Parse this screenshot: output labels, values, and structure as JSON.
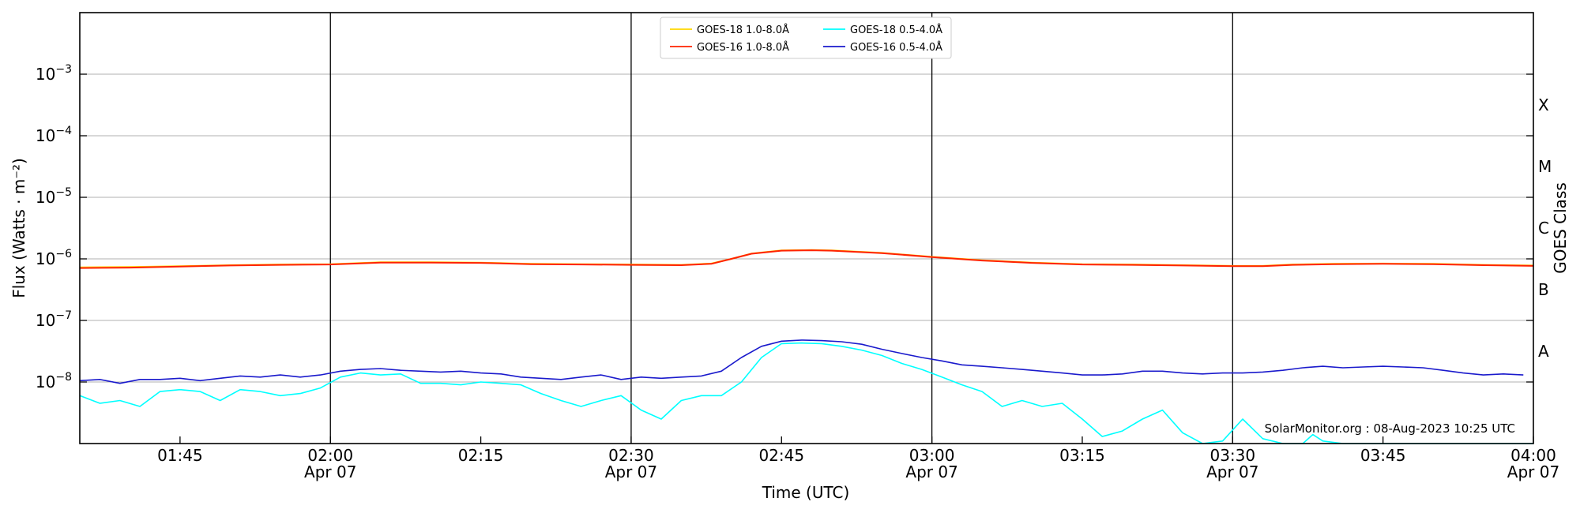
{
  "chart_data": {
    "type": "line",
    "xlabel": "Time (UTC)",
    "ylabel": "Flux (Watts · m⁻²)",
    "ylabel_right": "GOES Class",
    "credit": "SolarMonitor.org : 08-Aug-2023 10:25 UTC",
    "x_range": [
      "01:35",
      "04:00"
    ],
    "ylim": [
      1e-09,
      0.01
    ],
    "yscale": "log",
    "grid": "horizontal at decades",
    "legend_position": "top-center",
    "x_ticks": [
      {
        "time": "01:45",
        "line1": "01:45",
        "line2": ""
      },
      {
        "time": "02:00",
        "line1": "02:00",
        "line2": "Apr 07"
      },
      {
        "time": "02:15",
        "line1": "02:15",
        "line2": ""
      },
      {
        "time": "02:30",
        "line1": "02:30",
        "line2": "Apr 07"
      },
      {
        "time": "02:45",
        "line1": "02:45",
        "line2": ""
      },
      {
        "time": "03:00",
        "line1": "03:00",
        "line2": "Apr 07"
      },
      {
        "time": "03:15",
        "line1": "03:15",
        "line2": ""
      },
      {
        "time": "03:30",
        "line1": "03:30",
        "line2": "Apr 07"
      },
      {
        "time": "03:45",
        "line1": "03:45",
        "line2": ""
      },
      {
        "time": "04:00",
        "line1": "04:00",
        "line2": "Apr 07"
      }
    ],
    "vlines": [
      "02:00",
      "02:30",
      "03:00",
      "03:30"
    ],
    "y_ticks": [
      {
        "exp": -8,
        "base": "10",
        "sup": "−8"
      },
      {
        "exp": -7,
        "base": "10",
        "sup": "−7"
      },
      {
        "exp": -6,
        "base": "10",
        "sup": "−6"
      },
      {
        "exp": -5,
        "base": "10",
        "sup": "−5"
      },
      {
        "exp": -4,
        "base": "10",
        "sup": "−4"
      },
      {
        "exp": -3,
        "base": "10",
        "sup": "−3"
      }
    ],
    "goes_classes": [
      {
        "label": "A",
        "exp": -7.5
      },
      {
        "label": "B",
        "exp": -6.5
      },
      {
        "label": "C",
        "exp": -5.5
      },
      {
        "label": "M",
        "exp": -4.5
      },
      {
        "label": "X",
        "exp": -3.5
      }
    ],
    "legend": [
      {
        "label": "GOES-18 1.0-8.0Å",
        "color": "#ffd700"
      },
      {
        "label": "GOES-16 1.0-8.0Å",
        "color": "#ff2200"
      },
      {
        "label": "GOES-18 0.5-4.0Å",
        "color": "#00ffff"
      },
      {
        "label": "GOES-16 0.5-4.0Å",
        "color": "#1a1acc"
      }
    ],
    "series": [
      {
        "name": "GOES-18 1.0-8.0Å",
        "color": "#ffd700",
        "x": [
          "01:35",
          "01:40",
          "01:45",
          "01:50",
          "01:55",
          "02:00",
          "02:05",
          "02:10",
          "02:15",
          "02:20",
          "02:25",
          "02:30",
          "02:35",
          "02:38",
          "02:40",
          "02:42",
          "02:45",
          "02:48",
          "02:50",
          "02:55",
          "03:00",
          "03:05",
          "03:10",
          "03:15",
          "03:20",
          "03:25",
          "03:30",
          "03:33",
          "03:36",
          "03:40",
          "03:45",
          "03:50",
          "03:55",
          "04:00"
        ],
        "y": [
          7.3e-07,
          7.4e-07,
          7.6e-07,
          7.9e-07,
          8.1e-07,
          8.2e-07,
          8.8e-07,
          8.8e-07,
          8.7e-07,
          8.3e-07,
          8.2e-07,
          8.1e-07,
          8e-07,
          8.4e-07,
          1e-06,
          1.22e-06,
          1.37e-06,
          1.39e-06,
          1.37e-06,
          1.25e-06,
          1.08e-06,
          9.5e-07,
          8.7e-07,
          8.2e-07,
          8.1e-07,
          7.9e-07,
          7.7e-07,
          7.7e-07,
          8.1e-07,
          8.3e-07,
          8.4e-07,
          8.3e-07,
          8e-07,
          7.8e-07
        ]
      },
      {
        "name": "GOES-16 1.0-8.0Å",
        "color": "#ff2200",
        "x": [
          "01:35",
          "01:40",
          "01:45",
          "01:50",
          "01:55",
          "02:00",
          "02:05",
          "02:10",
          "02:15",
          "02:20",
          "02:25",
          "02:30",
          "02:35",
          "02:38",
          "02:40",
          "02:42",
          "02:45",
          "02:48",
          "02:50",
          "02:55",
          "03:00",
          "03:05",
          "03:10",
          "03:15",
          "03:20",
          "03:25",
          "03:30",
          "03:33",
          "03:36",
          "03:40",
          "03:45",
          "03:50",
          "03:55",
          "04:00"
        ],
        "y": [
          7.1e-07,
          7.2e-07,
          7.5e-07,
          7.8e-07,
          8e-07,
          8.1e-07,
          8.7e-07,
          8.7e-07,
          8.6e-07,
          8.2e-07,
          8.1e-07,
          8e-07,
          7.9e-07,
          8.3e-07,
          1e-06,
          1.21e-06,
          1.36e-06,
          1.38e-06,
          1.36e-06,
          1.24e-06,
          1.07e-06,
          9.4e-07,
          8.6e-07,
          8.1e-07,
          8e-07,
          7.8e-07,
          7.6e-07,
          7.6e-07,
          8e-07,
          8.2e-07,
          8.3e-07,
          8.2e-07,
          7.9e-07,
          7.7e-07
        ]
      },
      {
        "name": "GOES-18 0.5-4.0Å",
        "color": "#00ffff",
        "x": [
          "01:35",
          "01:37",
          "01:39",
          "01:41",
          "01:43",
          "01:45",
          "01:47",
          "01:49",
          "01:51",
          "01:53",
          "01:55",
          "01:57",
          "01:59",
          "02:01",
          "02:03",
          "02:05",
          "02:07",
          "02:09",
          "02:11",
          "02:13",
          "02:15",
          "02:17",
          "02:19",
          "02:21",
          "02:23",
          "02:25",
          "02:27",
          "02:29",
          "02:31",
          "02:33",
          "02:35",
          "02:37",
          "02:39",
          "02:41",
          "02:43",
          "02:45",
          "02:47",
          "02:49",
          "02:51",
          "02:53",
          "02:55",
          "02:57",
          "02:59",
          "03:01",
          "03:03",
          "03:05",
          "03:07",
          "03:09",
          "03:11",
          "03:13",
          "03:15",
          "03:17",
          "03:19",
          "03:21",
          "03:23",
          "03:25",
          "03:27",
          "03:29",
          "03:31",
          "03:33",
          "03:35",
          "03:37",
          "03:38",
          "03:39",
          "03:41",
          "03:43",
          "03:45",
          "03:50",
          "03:55",
          "04:00"
        ],
        "y": [
          6e-09,
          4.5e-09,
          5e-09,
          4e-09,
          7e-09,
          7.5e-09,
          7e-09,
          5e-09,
          7.5e-09,
          7e-09,
          6e-09,
          6.5e-09,
          8e-09,
          1.2e-08,
          1.4e-08,
          1.3e-08,
          1.35e-08,
          9.5e-09,
          9.5e-09,
          9e-09,
          1e-08,
          9.5e-09,
          9e-09,
          6.5e-09,
          5e-09,
          4e-09,
          5e-09,
          6e-09,
          3.5e-09,
          2.5e-09,
          5e-09,
          6e-09,
          6e-09,
          1e-08,
          2.5e-08,
          4.2e-08,
          4.3e-08,
          4.2e-08,
          3.8e-08,
          3.3e-08,
          2.7e-08,
          2e-08,
          1.6e-08,
          1.2e-08,
          9e-09,
          7e-09,
          4e-09,
          5e-09,
          4e-09,
          4.5e-09,
          2.5e-09,
          1.3e-09,
          1.6e-09,
          2.5e-09,
          3.5e-09,
          1.5e-09,
          1e-09,
          1.1e-09,
          2.5e-09,
          1.2e-09,
          1e-09,
          1e-09,
          1.4e-09,
          1.1e-09,
          1e-09,
          1e-09,
          1e-09,
          1e-09,
          1e-09,
          1e-09
        ]
      },
      {
        "name": "GOES-16 0.5-4.0Å",
        "color": "#1a1acc",
        "x": [
          "01:35",
          "01:37",
          "01:39",
          "01:41",
          "01:43",
          "01:45",
          "01:47",
          "01:49",
          "01:51",
          "01:53",
          "01:55",
          "01:57",
          "01:59",
          "02:01",
          "02:03",
          "02:05",
          "02:07",
          "02:09",
          "02:11",
          "02:13",
          "02:15",
          "02:17",
          "02:19",
          "02:21",
          "02:23",
          "02:25",
          "02:27",
          "02:29",
          "02:31",
          "02:33",
          "02:35",
          "02:37",
          "02:39",
          "02:41",
          "02:43",
          "02:45",
          "02:47",
          "02:49",
          "02:51",
          "02:53",
          "02:55",
          "02:57",
          "02:59",
          "03:01",
          "03:03",
          "03:05",
          "03:07",
          "03:09",
          "03:11",
          "03:13",
          "03:15",
          "03:17",
          "03:19",
          "03:21",
          "03:23",
          "03:25",
          "03:27",
          "03:29",
          "03:31",
          "03:33",
          "03:35",
          "03:37",
          "03:39",
          "03:41",
          "03:43",
          "03:45",
          "03:47",
          "03:49",
          "03:51",
          "03:53",
          "03:55",
          "03:57",
          "03:59"
        ],
        "y": [
          1.05e-08,
          1.1e-08,
          9.5e-09,
          1.1e-08,
          1.1e-08,
          1.15e-08,
          1.05e-08,
          1.15e-08,
          1.25e-08,
          1.2e-08,
          1.3e-08,
          1.2e-08,
          1.3e-08,
          1.5e-08,
          1.6e-08,
          1.65e-08,
          1.55e-08,
          1.5e-08,
          1.45e-08,
          1.5e-08,
          1.4e-08,
          1.35e-08,
          1.2e-08,
          1.15e-08,
          1.1e-08,
          1.2e-08,
          1.3e-08,
          1.1e-08,
          1.2e-08,
          1.15e-08,
          1.2e-08,
          1.25e-08,
          1.5e-08,
          2.5e-08,
          3.8e-08,
          4.6e-08,
          4.8e-08,
          4.7e-08,
          4.5e-08,
          4.1e-08,
          3.4e-08,
          2.9e-08,
          2.5e-08,
          2.2e-08,
          1.9e-08,
          1.8e-08,
          1.7e-08,
          1.6e-08,
          1.5e-08,
          1.4e-08,
          1.3e-08,
          1.3e-08,
          1.35e-08,
          1.5e-08,
          1.5e-08,
          1.4e-08,
          1.35e-08,
          1.4e-08,
          1.4e-08,
          1.45e-08,
          1.55e-08,
          1.7e-08,
          1.8e-08,
          1.7e-08,
          1.75e-08,
          1.8e-08,
          1.75e-08,
          1.7e-08,
          1.55e-08,
          1.4e-08,
          1.3e-08,
          1.35e-08,
          1.3e-08
        ]
      }
    ]
  }
}
